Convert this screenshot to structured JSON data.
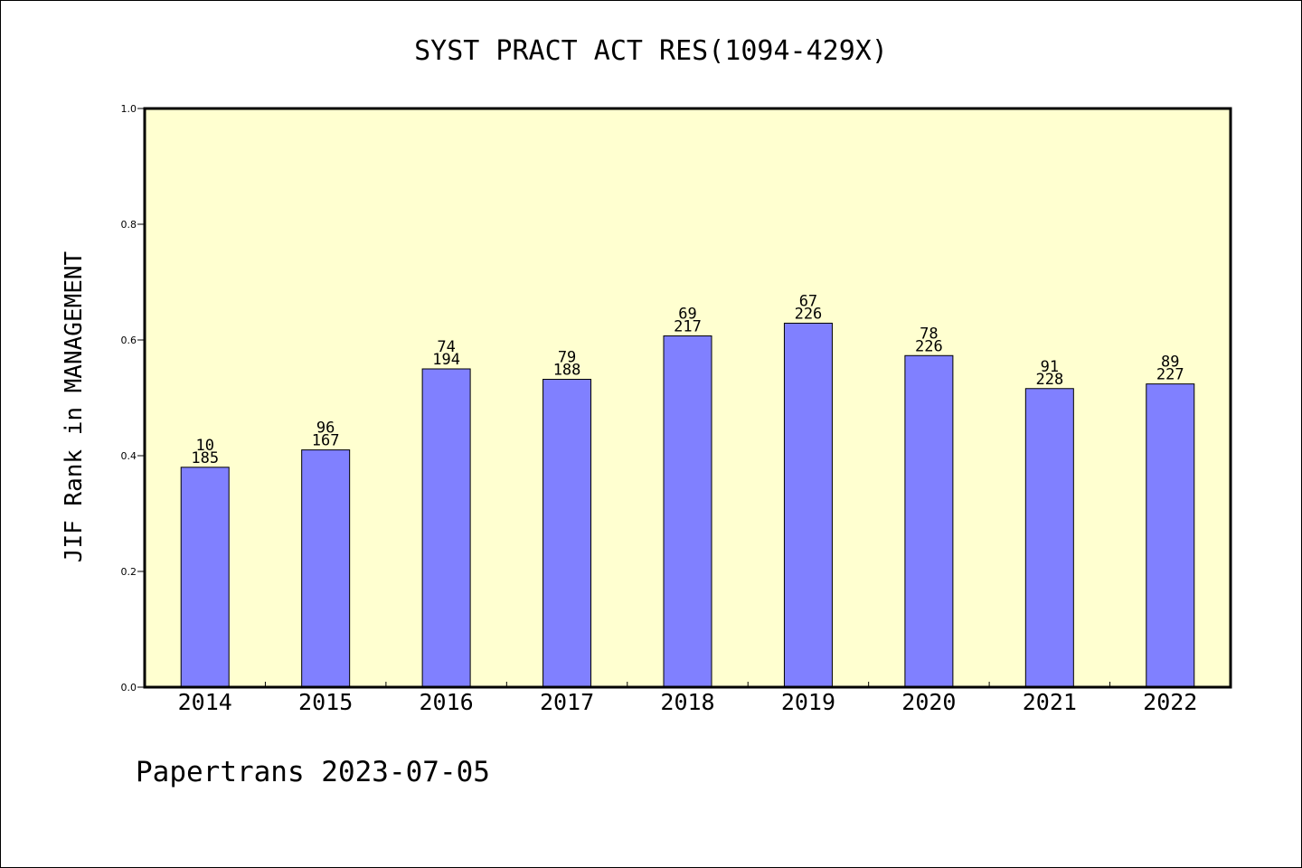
{
  "chart_data": {
    "type": "bar",
    "title": "SYST PRACT ACT RES(1094-429X)",
    "xlabel": "",
    "ylabel": "JIF Rank in MANAGEMENT",
    "footer": "Papertrans 2023-07-05",
    "ylim": [
      0,
      1.0
    ],
    "yticks": [
      "0.0",
      "0.2",
      "0.4",
      "0.6",
      "0.8",
      "1.0"
    ],
    "grid": false,
    "legend": "none",
    "categories": [
      "2014",
      "2015",
      "2016",
      "2017",
      "2018",
      "2019",
      "2020",
      "2021",
      "2022"
    ],
    "values": [
      0.38,
      0.41,
      0.55,
      0.532,
      0.607,
      0.629,
      0.573,
      0.516,
      0.524
    ],
    "rank_labels": [
      "10",
      "96",
      "74",
      "79",
      "69",
      "67",
      "78",
      "91",
      "89"
    ],
    "total_labels": [
      "185",
      "167",
      "194",
      "188",
      "217",
      "226",
      "226",
      "228",
      "227"
    ],
    "colors": {
      "plot_background": "#ffffd0",
      "bar_fill": "#8080ff",
      "bar_stroke": "#000000",
      "axis": "#000000"
    }
  }
}
